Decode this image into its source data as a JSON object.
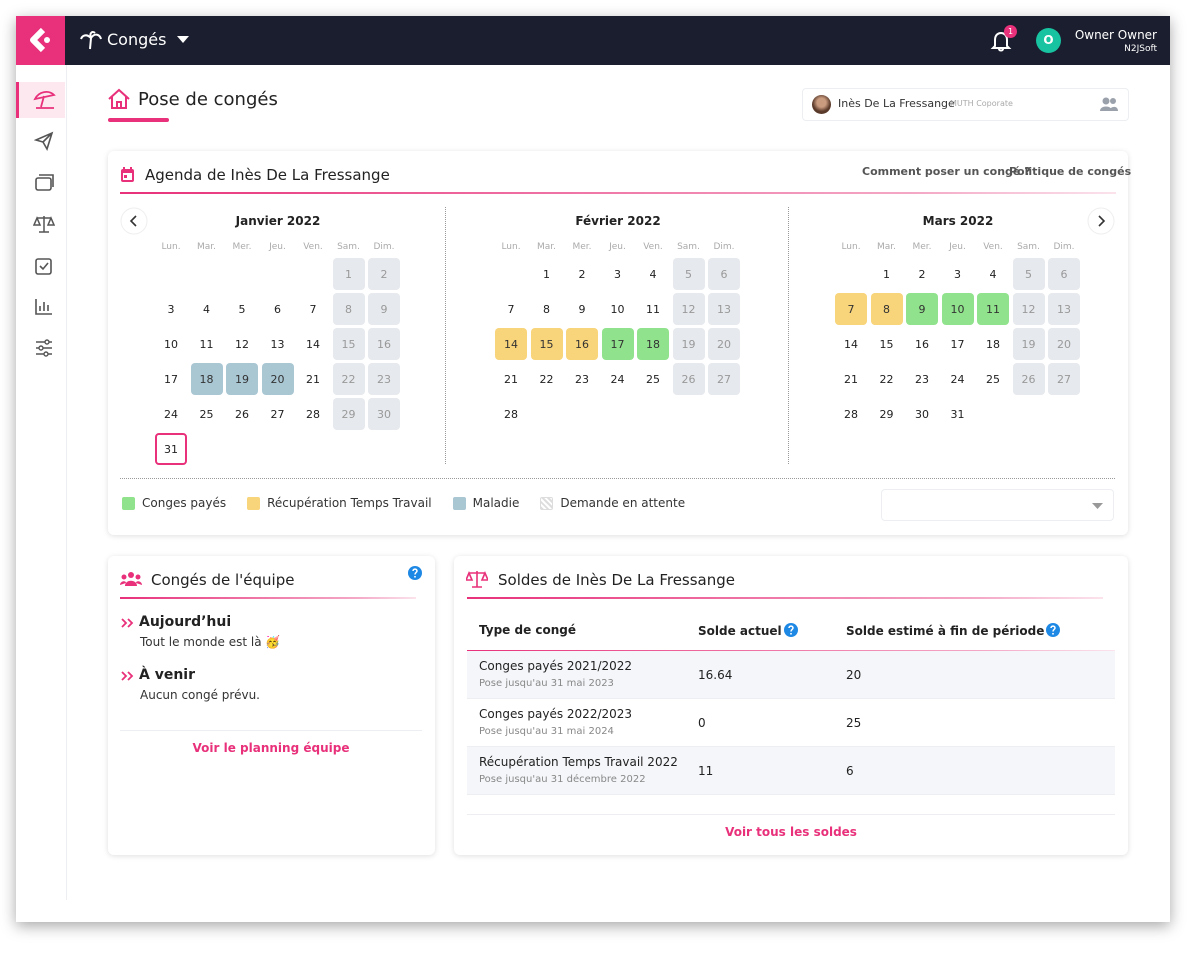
{
  "header": {
    "app": "Congés",
    "notifications": "1",
    "avatar": "O",
    "user": "Owner Owner",
    "company": "N2JSoft"
  },
  "page": {
    "title": "Pose de congés",
    "employee": "Inès De La Fressange",
    "employee_company": "MUTH Coporate"
  },
  "agenda": {
    "title": "Agenda de Inès De La Fressange",
    "links": [
      "Comment poser un congé ?",
      "Politique de congés"
    ],
    "weekdays": [
      "Lun.",
      "Mar.",
      "Mer.",
      "Jeu.",
      "Ven.",
      "Sam.",
      "Dim."
    ],
    "months": [
      {
        "name": "Janvier 2022",
        "days": [
          null,
          null,
          null,
          null,
          null,
          1,
          2,
          3,
          4,
          5,
          6,
          7,
          8,
          9,
          10,
          11,
          12,
          13,
          14,
          15,
          16,
          17,
          18,
          19,
          20,
          21,
          22,
          23,
          24,
          25,
          26,
          27,
          28,
          29,
          30,
          31
        ],
        "status": [
          null,
          null,
          null,
          null,
          null,
          null,
          null,
          null,
          null,
          null,
          null,
          null,
          null,
          null,
          null,
          null,
          null,
          null,
          null,
          null,
          null,
          null,
          2,
          2,
          2,
          null,
          null,
          null,
          null,
          null,
          null,
          null,
          null,
          null,
          null,
          "today"
        ]
      },
      {
        "name": "Février 2022",
        "days": [
          null,
          1,
          2,
          3,
          4,
          5,
          6,
          7,
          8,
          9,
          10,
          11,
          12,
          13,
          14,
          15,
          16,
          17,
          18,
          19,
          20,
          21,
          22,
          23,
          24,
          25,
          26,
          27,
          28
        ],
        "status": [
          null,
          null,
          null,
          null,
          null,
          null,
          null,
          null,
          null,
          null,
          null,
          null,
          null,
          null,
          1,
          1,
          1,
          0,
          0,
          null,
          null,
          null,
          null,
          null,
          null,
          null,
          null,
          null,
          null
        ]
      },
      {
        "name": "Mars 2022",
        "days": [
          null,
          1,
          2,
          3,
          4,
          5,
          6,
          7,
          8,
          9,
          10,
          11,
          12,
          13,
          14,
          15,
          16,
          17,
          18,
          19,
          20,
          21,
          22,
          23,
          24,
          25,
          26,
          27,
          28,
          29,
          30,
          31
        ],
        "status": [
          null,
          null,
          null,
          null,
          null,
          null,
          null,
          1,
          1,
          0,
          0,
          0,
          null,
          null,
          null,
          null,
          null,
          null,
          null,
          null,
          null,
          null,
          null,
          null,
          null,
          null,
          null,
          null,
          null,
          null,
          null,
          null
        ]
      }
    ],
    "legend": [
      {
        "name": "Conges payés",
        "color": "#90e38c"
      },
      {
        "name": "Récupération Temps Travail",
        "color": "#f8d47a"
      },
      {
        "name": "Maladie",
        "color": "#a9c6d3"
      },
      {
        "name": "Demande en attente",
        "color": "hatch"
      }
    ]
  },
  "team": {
    "title": "Congés de l'équipe",
    "sections": [
      {
        "title": "Aujourd’hui",
        "text": "Tout le monde est là 🥳"
      },
      {
        "title": "À venir",
        "text": "Aucun congé prévu."
      }
    ],
    "link": "Voir le planning équipe"
  },
  "balances": {
    "title": "Soldes de Inès De La Fressange",
    "headers": [
      "Type de congé",
      "Solde actuel",
      "Solde estimé à fin de période"
    ],
    "rows": [
      {
        "type": "Conges payés 2021/2022",
        "note": "Pose jusqu'au 31 mai 2023",
        "current": 16.64,
        "estimated": 20
      },
      {
        "type": "Conges payés 2022/2023",
        "note": "Pose jusqu'au 31 mai 2024",
        "current": 0,
        "estimated": 25
      },
      {
        "type": "Récupération Temps Travail 2022",
        "note": "Pose jusqu'au 31 décembre 2022",
        "current": 11,
        "estimated": 6
      }
    ],
    "link": "Voir tous les soldes"
  }
}
